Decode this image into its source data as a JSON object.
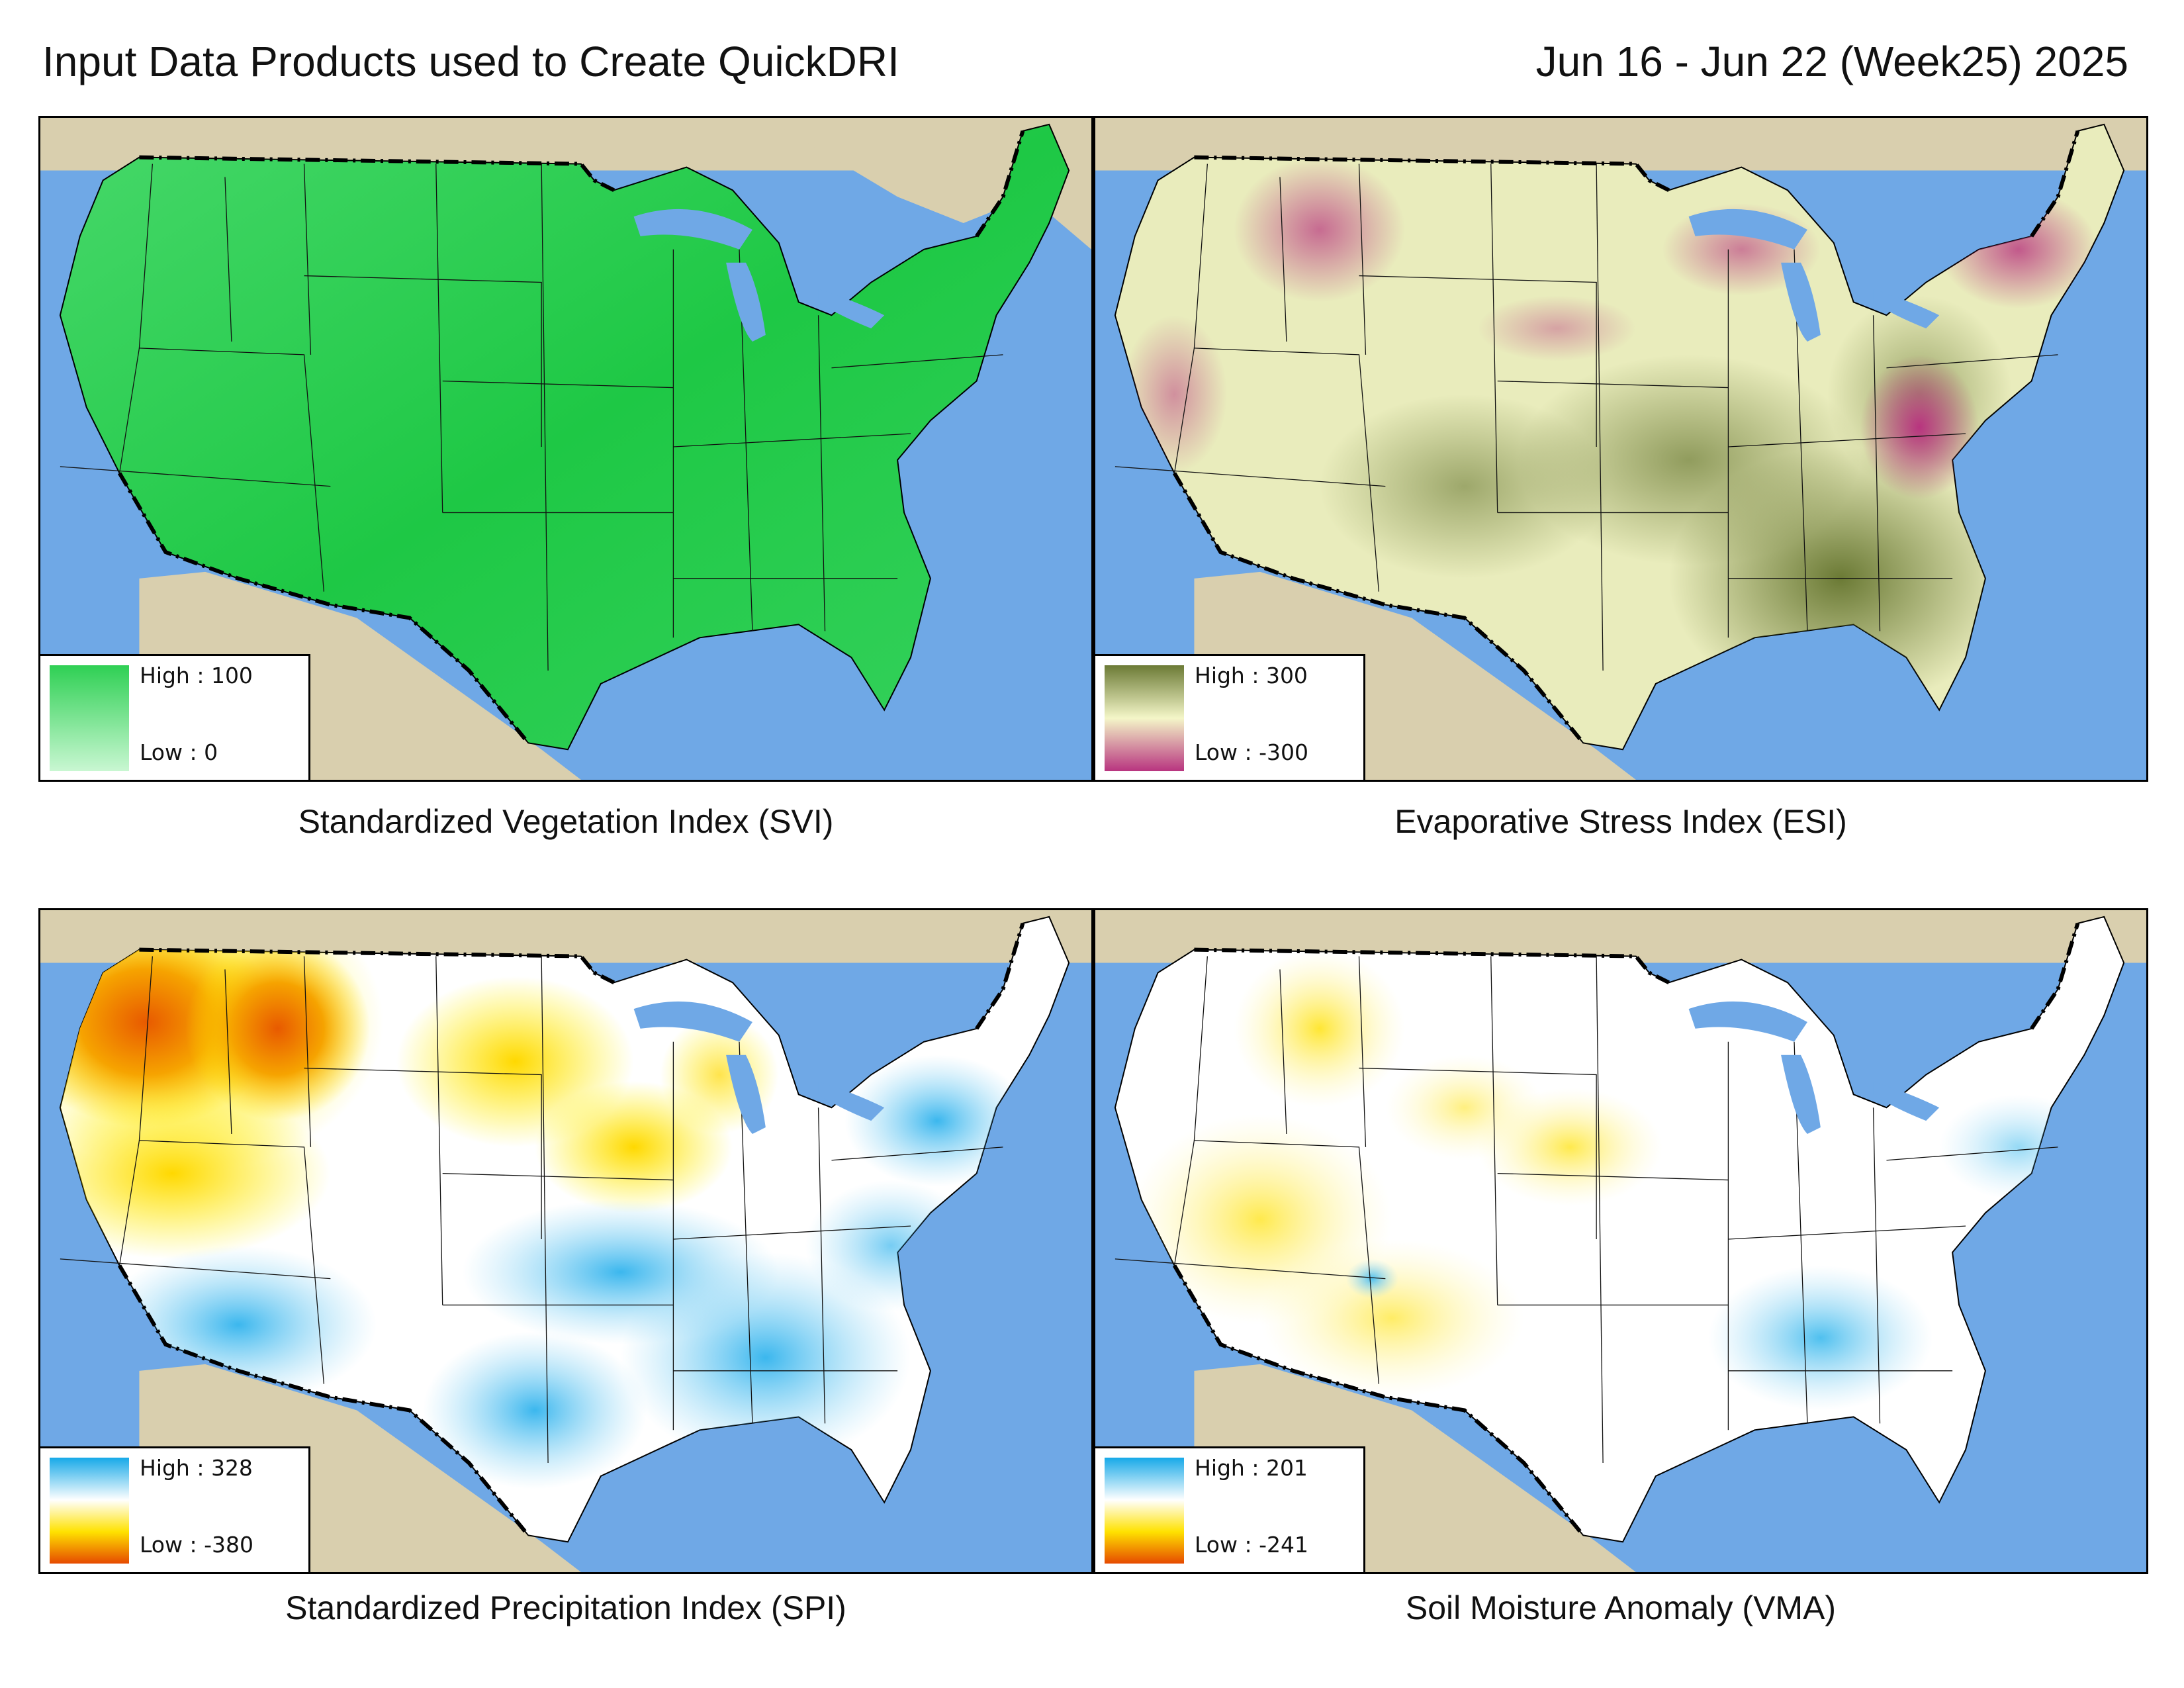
{
  "header": {
    "title": "Input Data Products used to Create QuickDRI",
    "period": "Jun 16 - Jun 22 (Week25) 2025"
  },
  "colors": {
    "ocean": "#6fa8e6",
    "land_outside": "#d9cfae",
    "border_line": "#000000"
  },
  "panels": [
    {
      "id": "svi",
      "caption": "Standardized Vegetation Index (SVI)",
      "legend": {
        "high": "High : 100",
        "low": "Low : 0",
        "ramp": [
          "#2fd054",
          "#c9f7d2"
        ]
      },
      "fill": "#27cc4a"
    },
    {
      "id": "esi",
      "caption": "Evaporative Stress Index (ESI)",
      "legend": {
        "high": "High : 300",
        "low": "Low : -300",
        "ramp": [
          "#6b7a35",
          "#f4f6c8",
          "#b8347f"
        ]
      },
      "fill": "#e9ecbc"
    },
    {
      "id": "spi",
      "caption": "Standardized Precipitation Index (SPI)",
      "legend": {
        "high": "High : 328",
        "low": "Low : -380",
        "ramp": [
          "#17a9e8",
          "#ffffff",
          "#ffe200",
          "#e64a00"
        ]
      },
      "fill": "#ffffff"
    },
    {
      "id": "vma",
      "caption": "Soil Moisture Anomaly (VMA)",
      "legend": {
        "high": "High : 201",
        "low": "Low : -241",
        "ramp": [
          "#17a9e8",
          "#ffffff",
          "#ffe200",
          "#e64a00"
        ]
      },
      "fill": "#ffffff"
    }
  ]
}
